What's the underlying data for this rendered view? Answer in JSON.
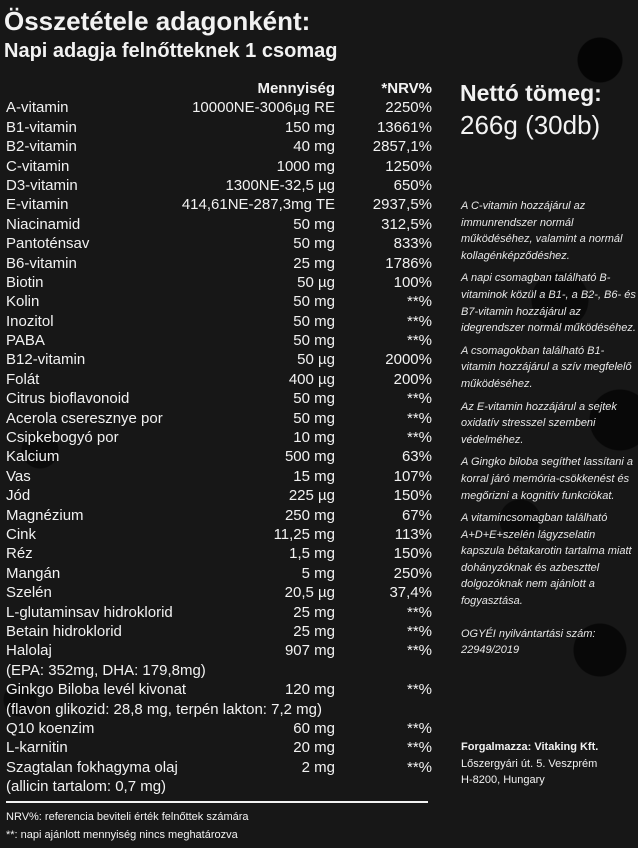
{
  "title": "Összetétele adagonként:",
  "subtitle": "Napi adagja felnőtteknek 1 csomag",
  "table": {
    "headers": {
      "amount": "Mennyiség",
      "nrv": "*NRV%"
    },
    "rows": [
      {
        "name": "A-vitamin",
        "amount": "10000NE-3006µg RE",
        "nrv": "2250%"
      },
      {
        "name": "B1-vitamin",
        "amount": "150 mg",
        "nrv": "13661%"
      },
      {
        "name": "B2-vitamin",
        "amount": "40 mg",
        "nrv": "2857,1%"
      },
      {
        "name": "C-vitamin",
        "amount": "1000 mg",
        "nrv": "1250%"
      },
      {
        "name": "D3-vitamin",
        "amount": "1300NE-32,5 µg",
        "nrv": "650%"
      },
      {
        "name": "E-vitamin",
        "amount": "414,61NE-287,3mg TE",
        "nrv": "2937,5%"
      },
      {
        "name": "Niacinamid",
        "amount": "50 mg",
        "nrv": "312,5%"
      },
      {
        "name": "Pantoténsav",
        "amount": "50 mg",
        "nrv": "833%"
      },
      {
        "name": "B6-vitamin",
        "amount": "25 mg",
        "nrv": "1786%"
      },
      {
        "name": "Biotin",
        "amount": "50 µg",
        "nrv": "100%"
      },
      {
        "name": "Kolin",
        "amount": "50 mg",
        "nrv": "**%"
      },
      {
        "name": "Inozitol",
        "amount": "50 mg",
        "nrv": "**%"
      },
      {
        "name": "PABA",
        "amount": "50 mg",
        "nrv": "**%"
      },
      {
        "name": "B12-vitamin",
        "amount": "50 µg",
        "nrv": "2000%"
      },
      {
        "name": "Folát",
        "amount": "400 µg",
        "nrv": "200%"
      },
      {
        "name": "Citrus bioflavonoid",
        "amount": "50 mg",
        "nrv": "**%"
      },
      {
        "name": "Acerola cseresznye por",
        "amount": "50 mg",
        "nrv": "**%"
      },
      {
        "name": "Csipkebogyó por",
        "amount": "10 mg",
        "nrv": "**%"
      },
      {
        "name": "Kalcium",
        "amount": "500 mg",
        "nrv": "63%"
      },
      {
        "name": "Vas",
        "amount": "15 mg",
        "nrv": "107%"
      },
      {
        "name": "Jód",
        "amount": "225 µg",
        "nrv": "150%"
      },
      {
        "name": "Magnézium",
        "amount": "250 mg",
        "nrv": "67%"
      },
      {
        "name": "Cink",
        "amount": "11,25 mg",
        "nrv": "113%"
      },
      {
        "name": "Réz",
        "amount": "1,5 mg",
        "nrv": "150%"
      },
      {
        "name": "Mangán",
        "amount": "5 mg",
        "nrv": "250%"
      },
      {
        "name": "Szelén",
        "amount": "20,5 µg",
        "nrv": "37,4%"
      },
      {
        "name": "L-glutaminsav hidroklorid",
        "amount": "25 mg",
        "nrv": "**%"
      },
      {
        "name": "Betain hidroklorid",
        "amount": "25 mg",
        "nrv": "**%"
      },
      {
        "name": "Halolaj",
        "amount": "907 mg",
        "nrv": "**%"
      },
      {
        "name": "(EPA: 352mg, DHA: 179,8mg)",
        "amount": "",
        "nrv": ""
      },
      {
        "name": "Ginkgo Biloba levél kivonat",
        "amount": "120 mg",
        "nrv": "**%"
      },
      {
        "name": "(flavon glikozid: 28,8 mg, terpén lakton: 7,2 mg)",
        "amount": "",
        "nrv": ""
      },
      {
        "name": "Q10 koenzim",
        "amount": "60 mg",
        "nrv": "**%"
      },
      {
        "name": "L-karnitin",
        "amount": "20 mg",
        "nrv": "**%"
      },
      {
        "name": "Szagtalan fokhagyma olaj",
        "amount": "2 mg",
        "nrv": "**%"
      },
      {
        "name": "(allicin tartalom: 0,7 mg)",
        "amount": "",
        "nrv": ""
      }
    ]
  },
  "footnotes": [
    "NRV%: referencia beviteli érték felnőttek számára",
    "**: napi ajánlott mennyiség nincs meghatározva"
  ],
  "netto_label": "Nettó tömeg:",
  "netto_value": "266g (30db)",
  "notes": [
    "A C-vitamin hozzájárul az immunrendszer normál működéséhez, valamint a normál kollagénképződéshez.",
    "A napi csomagban található B-vitaminok közül a B1-, a B2-, B6- és B7-vitamin hozzájárul az idegrendszer normál működéséhez.",
    "A csomagokban található B1-vitamin hozzájárul a szív megfelelő működéséhez.",
    "Az E-vitamin hozzájárul a sejtek oxidatív stresszel szembeni védelméhez.",
    "A Gingko biloba segíthet lassítani a korral járó memória-csökkenést és megőrizni a kognitív funkciókat.",
    "A vitamincsomagban található A+D+E+szelén lágyzselatin kapszula bétakarotin tartalma miatt dohányzóknak és azbeszttel dolgozóknak nem ajánlott a fogyasztása.",
    "OGYÉI nyilvántartási szám: 22949/2019"
  ],
  "distributor": {
    "label": "Forgalmazza: Vitaking Kft.",
    "address1": "Lőszergyári út. 5. Veszprém",
    "address2": "H-8200, Hungary"
  }
}
